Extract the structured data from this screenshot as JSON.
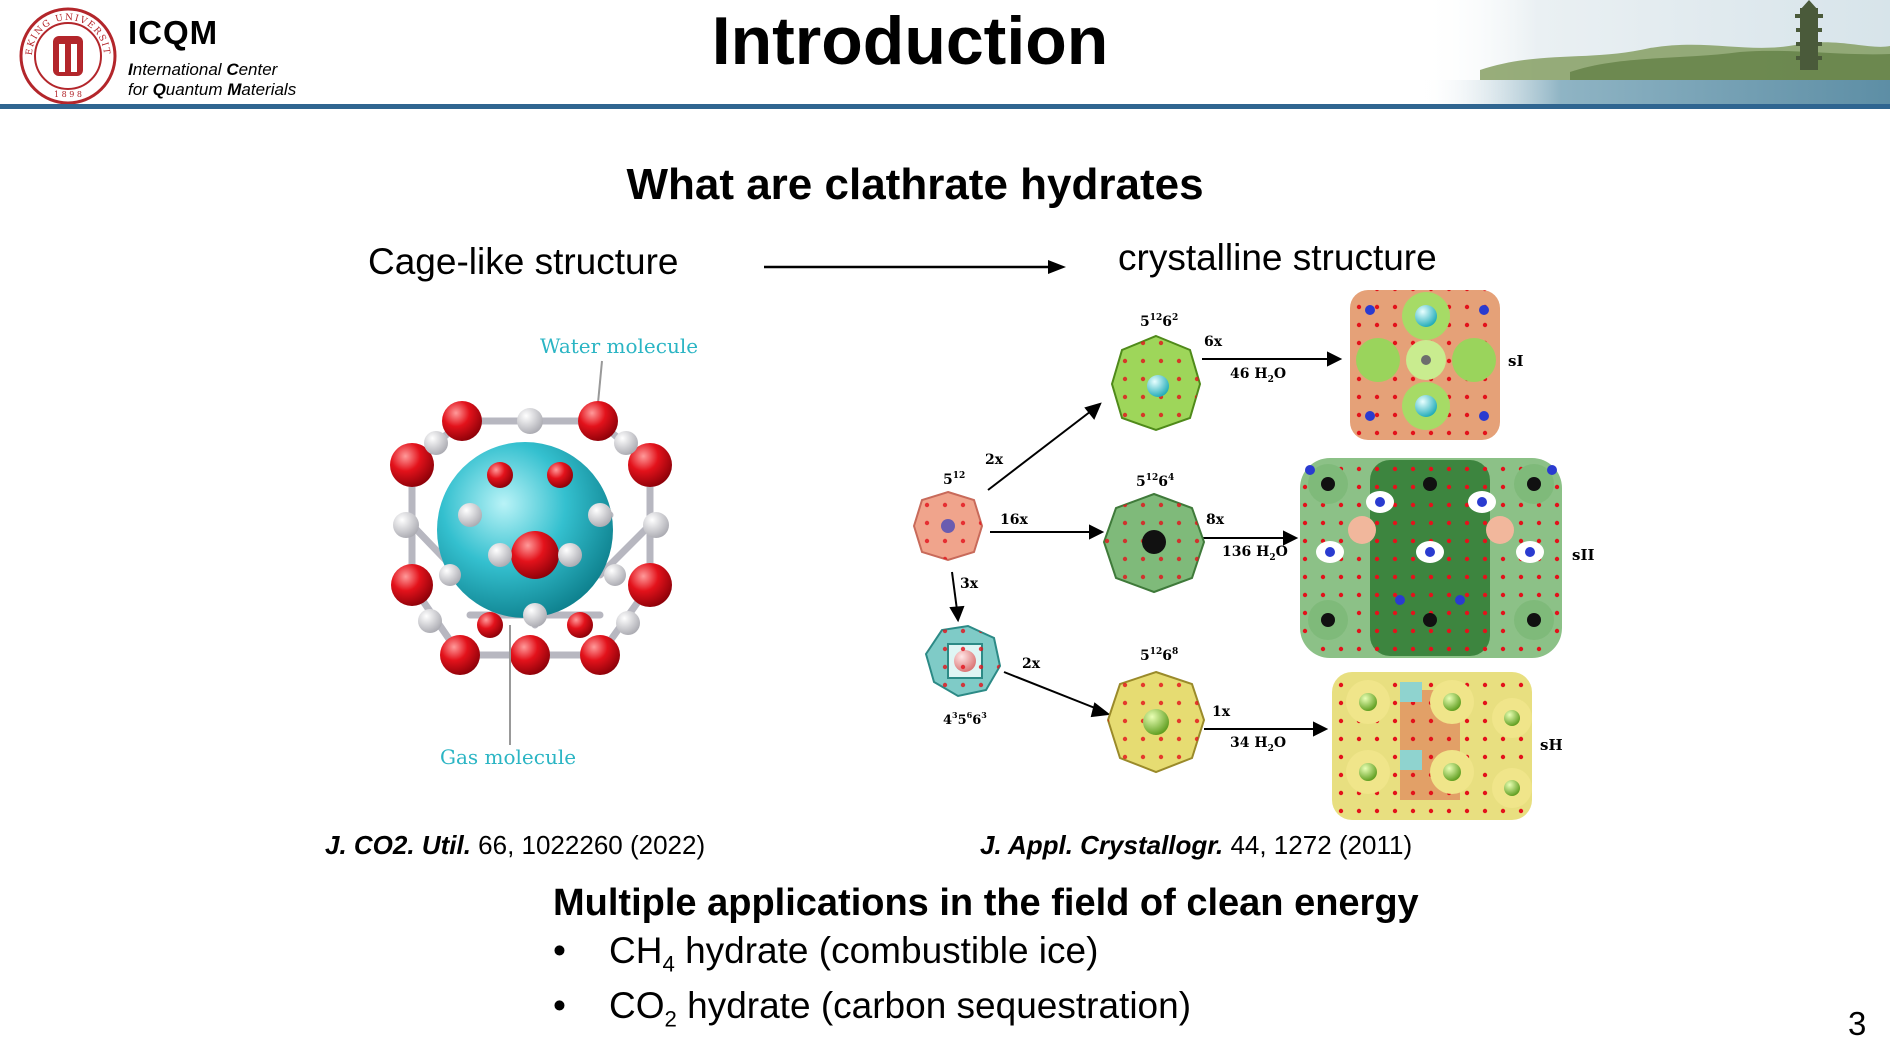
{
  "header": {
    "org_short": "ICQM",
    "org_line1_parts": [
      "I",
      "nternational ",
      "C",
      "enter"
    ],
    "org_line2_parts": [
      "for ",
      "Q",
      "uantum ",
      "M",
      "aterials"
    ],
    "seal_text": "PEKING UNIVERSITY",
    "seal_year": "1898",
    "title": "Introduction"
  },
  "colors": {
    "seal_red": "#b3262b",
    "rule_blue": "#2f6590",
    "water_label": "#2bb5c4",
    "oxygen_red": "#e3121b",
    "gas_cyan": "#23b3c3"
  },
  "section": {
    "subtitle": "What are clathrate hydrates",
    "left_label": "Cage-like structure",
    "right_label": "crystalline structure"
  },
  "cage_figure": {
    "water_label": "Water molecule",
    "gas_label": "Gas molecule"
  },
  "crystal_figure": {
    "cage_512": "5",
    "cage_512_sup": "12",
    "cage_51262": "5",
    "cage_51262_sup1": "12",
    "cage_51262_mid": "6",
    "cage_51262_sup2": "2",
    "cage_51264_sup2": "4",
    "cage_51268_sup2": "8",
    "cage_435663": "4",
    "cage_435663_sup1": "3",
    "cage_435663_mid1": "5",
    "cage_435663_sup2": "6",
    "cage_435663_mid2": "6",
    "cage_435663_sup3": "3",
    "arrow_2x_top": "2x",
    "arrow_16x": "16x",
    "arrow_3x": "3x",
    "arrow_2x_bottom": "2x",
    "arrow_6x": "6x",
    "arrow_8x": "8x",
    "arrow_1x": "1x",
    "water_46": "46 H",
    "water_136": "136 H",
    "water_34": "34 H",
    "water_sub": "2",
    "water_o": "O",
    "label_sI": "sI",
    "label_sII": "sII",
    "label_sH": "sH"
  },
  "refs": {
    "left_journal": "J. CO2. Util.",
    "left_rest": " 66, 1022260 (2022)",
    "right_journal": "J. Appl. Crystallogr.",
    "right_rest": " 44, 1272 (2011)"
  },
  "applications": {
    "heading": "Multiple applications in the field of clean energy",
    "bullet_symbol": "•",
    "items": [
      {
        "pre": "CH",
        "sub": "4",
        "post": " hydrate (combustible ice)"
      },
      {
        "pre": "CO",
        "sub": "2",
        "post": " hydrate (carbon sequestration)"
      }
    ]
  },
  "page_number": "3"
}
